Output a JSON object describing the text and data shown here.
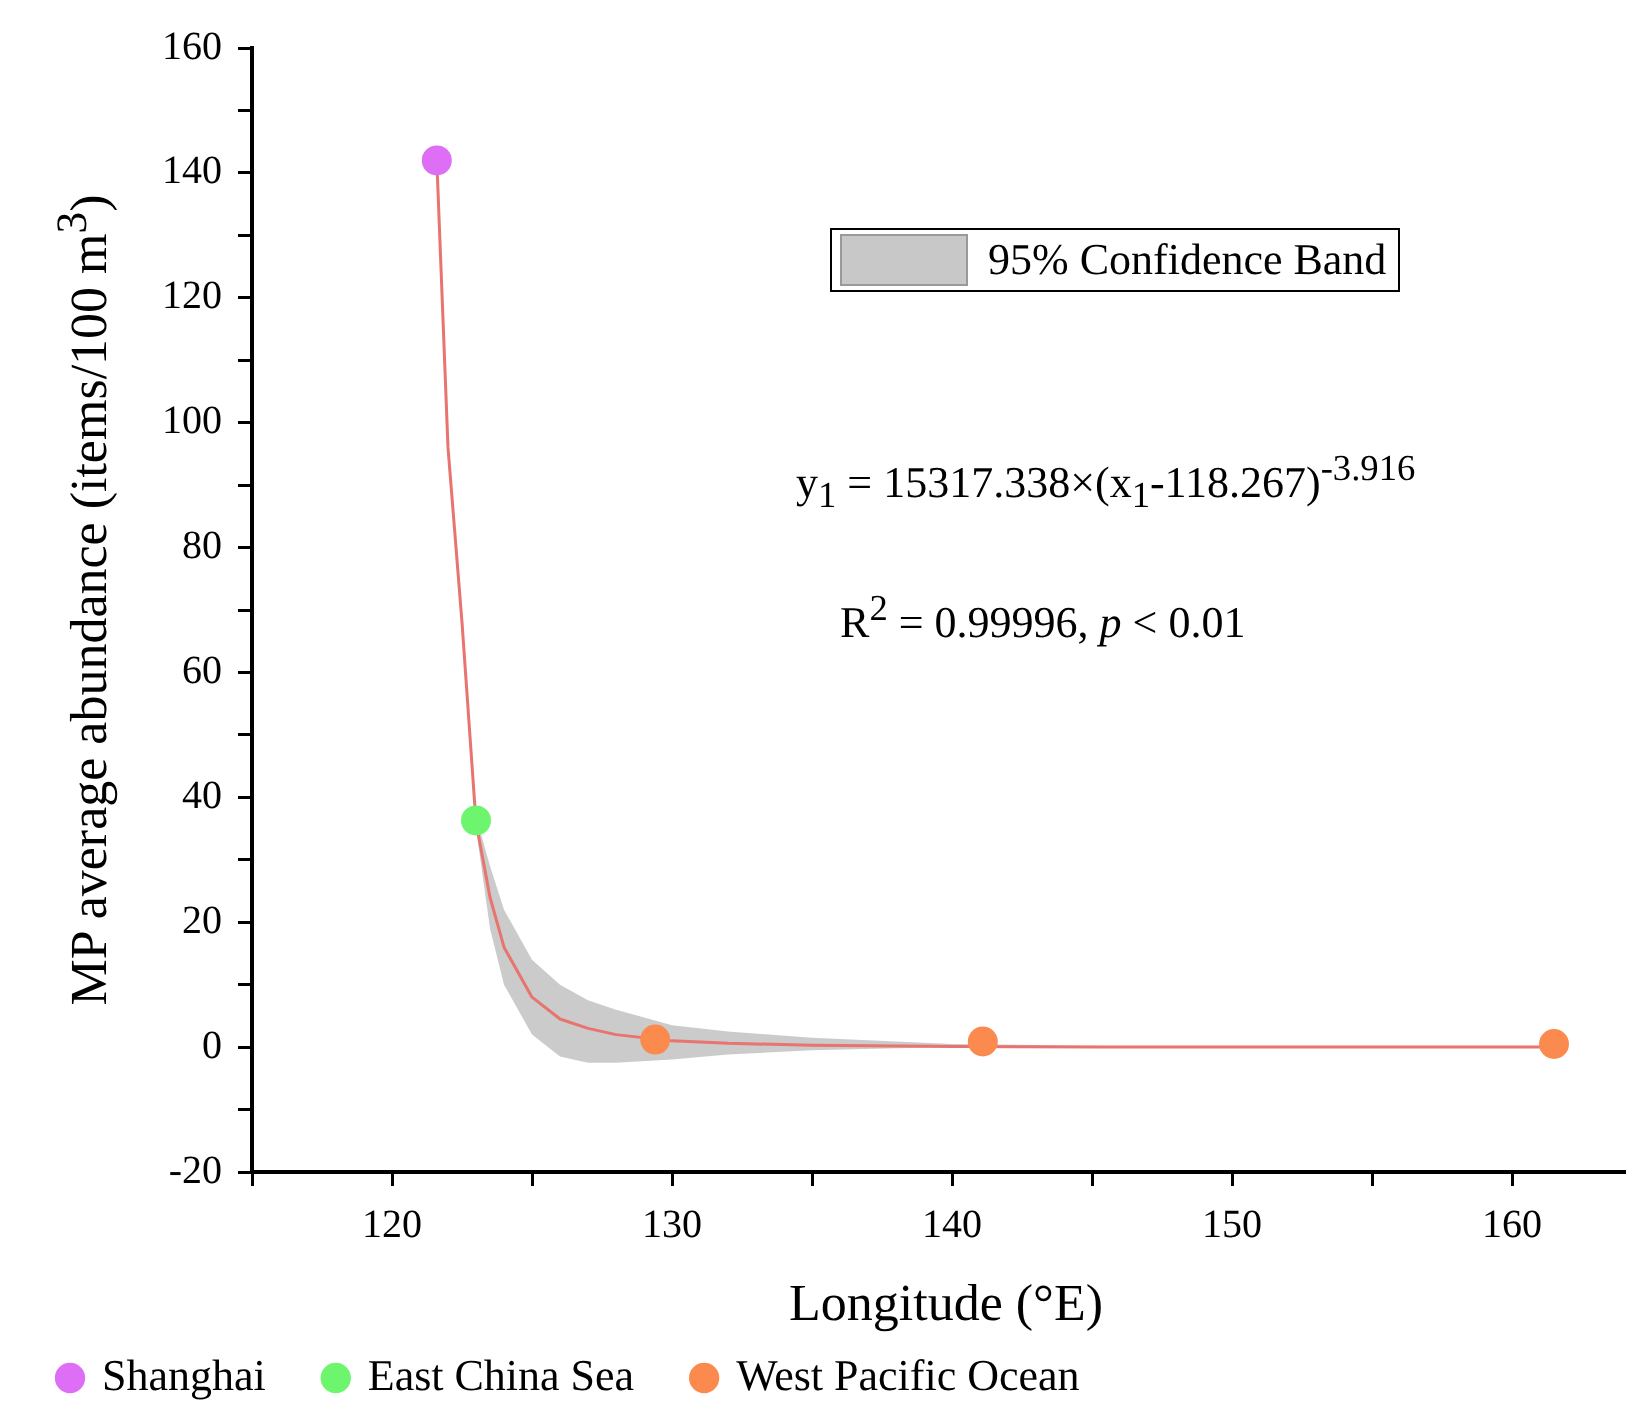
{
  "chart_data": {
    "type": "scatter",
    "xlabel": "Longitude (°E)",
    "ylabel": "MP average abundance (items/100 m$^{3}$)",
    "xlim": [
      115,
      164
    ],
    "ylim": [
      -20,
      160
    ],
    "xticks": [
      {
        "value": 115,
        "label": null
      },
      120,
      {
        "value": 125,
        "label": null
      },
      130,
      {
        "value": 135,
        "label": null
      },
      140,
      {
        "value": 145,
        "label": null
      },
      150,
      {
        "value": 155,
        "label": null
      },
      160
    ],
    "yticks": [
      -20,
      {
        "value": -10,
        "label": null
      },
      0,
      {
        "value": 10,
        "label": null
      },
      20,
      {
        "value": 30,
        "label": null
      },
      40,
      {
        "value": 50,
        "label": null
      },
      60,
      {
        "value": 70,
        "label": null
      },
      80,
      {
        "value": 90,
        "label": null
      },
      100,
      {
        "value": 110,
        "label": null
      },
      120,
      {
        "value": 130,
        "label": null
      },
      140,
      {
        "value": 150,
        "label": null
      },
      160
    ],
    "grid": false,
    "legend": "bottom",
    "marker": "circle",
    "series": [
      {
        "type": "line",
        "marker": "none",
        "color": "#e8736f",
        "x": [
          121.6,
          122,
          122.5,
          123,
          123.5,
          124,
          125,
          126,
          127,
          128,
          130,
          132,
          135,
          140,
          145,
          150,
          161.5
        ],
        "values": [
          142,
          96,
          68,
          36,
          24,
          16,
          8,
          4.5,
          3,
          2,
          1,
          0.6,
          0.3,
          0.1,
          0,
          0,
          0
        ],
        "lower": [
          142,
          95,
          66,
          35,
          19,
          10,
          2,
          -1.5,
          -2.5,
          -2.5,
          -2,
          -1.2,
          -0.5,
          0,
          0,
          0,
          0
        ],
        "upper": [
          142,
          97,
          70,
          37,
          29,
          22,
          14,
          10,
          7.5,
          6,
          3.5,
          2.5,
          1.5,
          0.5,
          0.2,
          0,
          0
        ]
      },
      {
        "name": "Shanghai",
        "color": "#dd6ef5",
        "x": [
          121.6
        ],
        "values": [
          142
        ]
      },
      {
        "name": "East China Sea",
        "color": "#6ef56e",
        "x": [
          123.0
        ],
        "values": [
          36.3
        ]
      },
      {
        "name": "West Pacific Ocean",
        "color": "#fb8a4e",
        "x": [
          129.4,
          141.1,
          161.5
        ],
        "values": [
          1.2,
          0.9,
          0.5
        ]
      }
    ],
    "annotations": [
      "95% Confidence Band",
      "y$_{1}$ = 15317.338×(x$_{1}$-118.267)$^{-3.916}$",
      "R$^{2}$ = 0.99996,  p < 0.01"
    ]
  }
}
